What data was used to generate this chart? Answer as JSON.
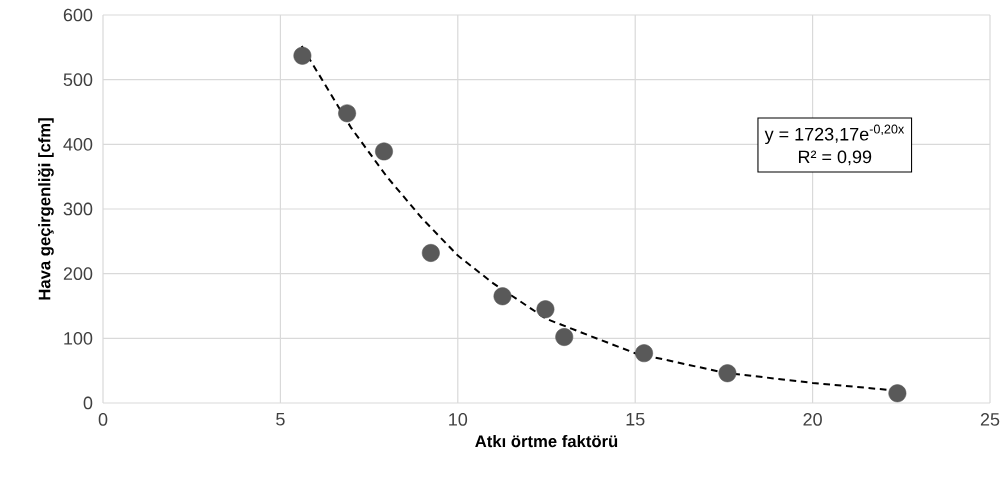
{
  "chart_data": {
    "type": "scatter",
    "xlabel": "Atkı örtme faktörü",
    "ylabel": "Hava geçirgenliği [cfm]",
    "series": [
      {
        "color": "#595959",
        "marker": "circle",
        "x": [
          5.62,
          6.88,
          7.92,
          9.24,
          11.26,
          12.47,
          13.0,
          15.25,
          17.6,
          22.39
        ],
        "values": [
          537,
          448,
          389,
          232,
          165,
          145,
          102,
          77,
          46,
          15
        ]
      },
      {
        "type": "line",
        "color": "#000000",
        "line_style": "dashed",
        "marker": "none",
        "x": [
          5.6,
          7,
          8,
          9,
          10,
          11,
          12.5,
          14,
          15,
          17.5,
          20,
          22.4
        ],
        "values": [
          552,
          425,
          350,
          285,
          228,
          185,
          130,
          98,
          77,
          47,
          31,
          19
        ]
      }
    ],
    "annotations": [
      "y = 1723,17e$^{-0,20x}$",
      "R² = 0,99"
    ],
    "xlim": [
      0,
      25
    ],
    "ylim": [
      0,
      600
    ],
    "xticks": [
      0,
      5,
      10,
      15,
      20,
      25
    ],
    "yticks": [
      0,
      100,
      200,
      300,
      400,
      500,
      600
    ],
    "grid": true
  }
}
